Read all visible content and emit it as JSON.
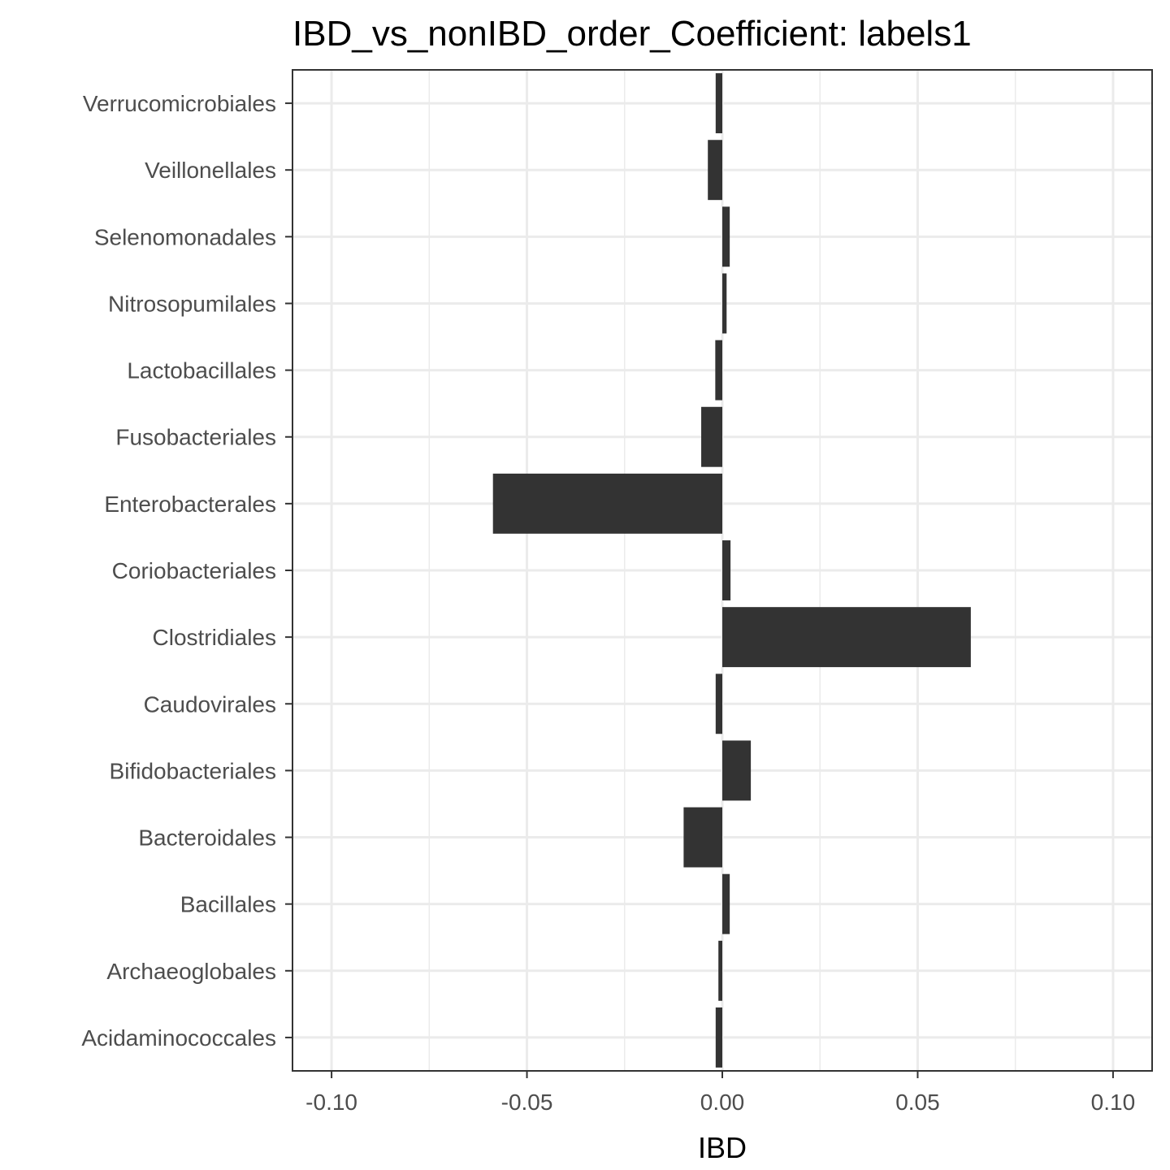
{
  "chart_data": {
    "type": "bar",
    "orientation": "horizontal",
    "title": "IBD_vs_nonIBD_order_Coefficient: labels1",
    "xlabel": "IBD",
    "ylabel": "",
    "xlim": [
      -0.11,
      0.11
    ],
    "xticks": [
      -0.1,
      -0.05,
      0.0,
      0.05,
      0.1
    ],
    "xtick_labels": [
      "-0.10",
      "-0.05",
      "0.00",
      "0.05",
      "0.10"
    ],
    "categories": [
      "Acidaminococcales",
      "Archaeoglobales",
      "Bacillales",
      "Bacteroidales",
      "Bifidobacteriales",
      "Caudovirales",
      "Clostridiales",
      "Coriobacteriales",
      "Enterobacterales",
      "Fusobacteriales",
      "Lactobacillales",
      "Nitrosopumilales",
      "Selenomonadales",
      "Veillonellales",
      "Verrucomicrobiales"
    ],
    "values": [
      -0.0017,
      -0.001,
      0.0019,
      -0.0099,
      0.0073,
      -0.0017,
      0.0636,
      0.0021,
      -0.0587,
      -0.0054,
      -0.0018,
      0.0011,
      0.0019,
      -0.0037,
      -0.0017
    ],
    "grid": true,
    "legend": "none",
    "colors": {
      "bar": "#333333",
      "grid_major": "#ebebeb",
      "grid_minor": "#ebebeb",
      "panel_border": "#333333",
      "tick_text": "#4d4d4d"
    }
  }
}
